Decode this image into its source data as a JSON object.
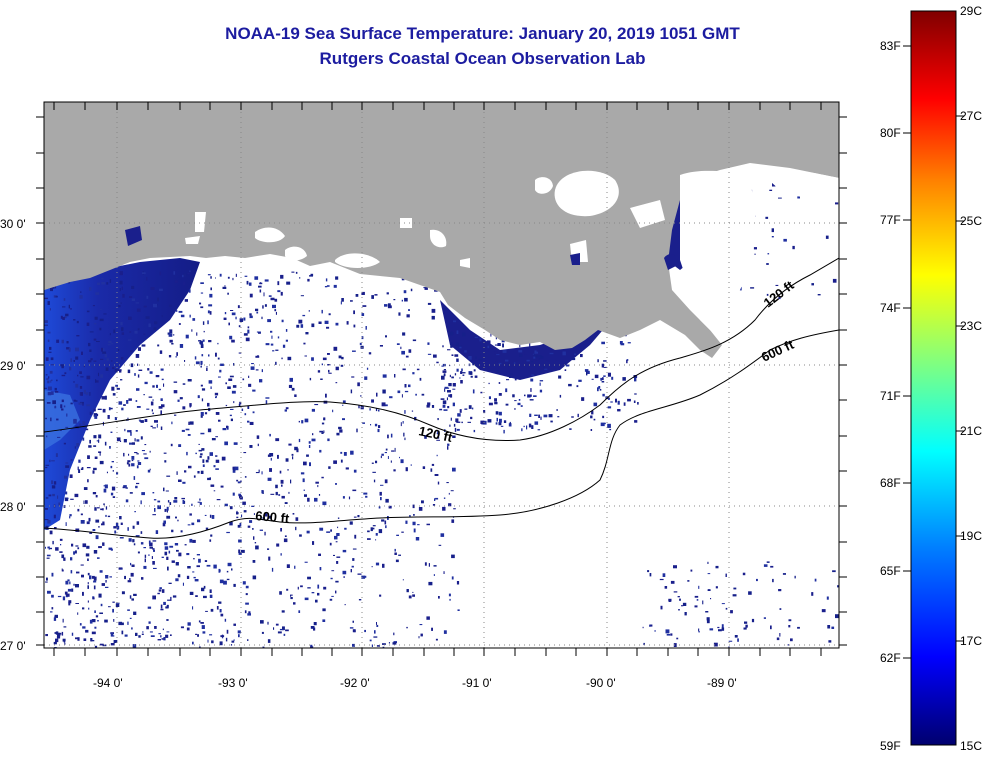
{
  "title": {
    "line1": "NOAA-19 Sea Surface Temperature:  January 20, 2019 1051 GMT",
    "line2": "Rutgers Coastal Ocean Observation Lab"
  },
  "map": {
    "lon_labels": [
      "-94 0'",
      "-93 0'",
      "-92 0'",
      "-91 0'",
      "-90 0'",
      "-89 0'"
    ],
    "lat_labels": [
      "30 0'",
      "29 0'",
      "28 0'",
      "27 0'"
    ],
    "contour_labels": {
      "shelf_120_west": "120 ft",
      "shelf_600_west": "600 ft",
      "shelf_120_east": "120 ft",
      "shelf_600_east": "600 ft"
    },
    "colors": {
      "land": "#a9a9a9",
      "cloud": "#ffffff",
      "cold_water": "#1a1f8c",
      "frame": "#000000"
    }
  },
  "colorbar": {
    "fahrenheit_labels": [
      "83F",
      "80F",
      "77F",
      "74F",
      "71F",
      "68F",
      "65F",
      "62F",
      "59F"
    ],
    "celsius_labels": [
      "29C",
      "27C",
      "25C",
      "23C",
      "21C",
      "19C",
      "17C",
      "15C"
    ],
    "min_c": 15,
    "max_c": 29,
    "gradient": [
      "#00006e",
      "#0000ff",
      "#0080ff",
      "#00ffff",
      "#80ff80",
      "#ffff00",
      "#ff8000",
      "#ff0000",
      "#800000"
    ]
  }
}
